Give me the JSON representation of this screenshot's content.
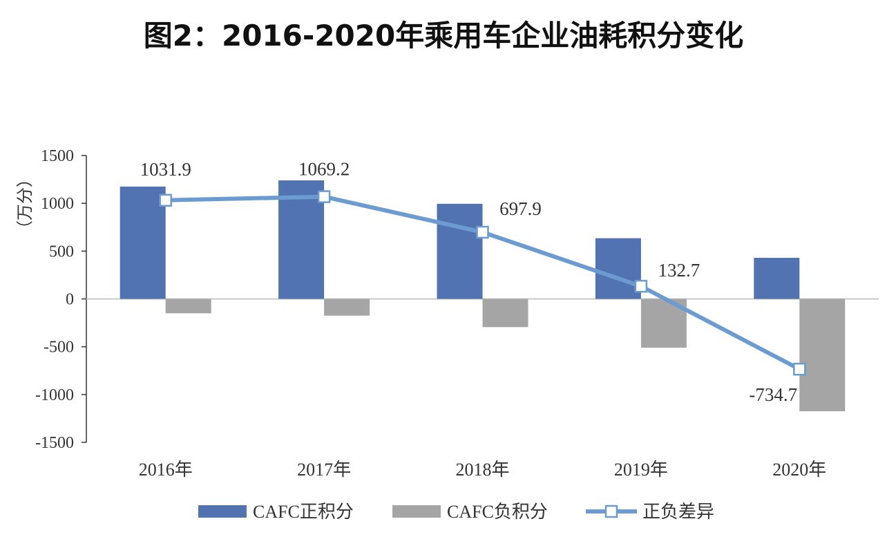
{
  "title": "图2：2016-2020年乘用车企业油耗积分变化",
  "chart_data": {
    "type": "bar",
    "categories": [
      "2016年",
      "2017年",
      "2018年",
      "2019年",
      "2020年"
    ],
    "ylabel": "（万分）",
    "ylim": [
      -1500,
      1500
    ],
    "yticks": [
      1500,
      1000,
      500,
      0,
      -500,
      -1000,
      -1500
    ],
    "grid": false,
    "legend_position": "bottom",
    "series": [
      {
        "name": "CAFC正积分",
        "type": "bar",
        "color": "#5273b1",
        "values": [
          1175,
          1240,
          995,
          635,
          430
        ]
      },
      {
        "name": "CAFC负积分",
        "type": "bar",
        "color": "#a5a5a5",
        "values": [
          -150,
          -175,
          -295,
          -510,
          -1175
        ]
      },
      {
        "name": "正负差异",
        "type": "line",
        "color": "#6b9bd0",
        "values": [
          1031.9,
          1069.2,
          697.9,
          132.7,
          -734.7
        ]
      }
    ],
    "data_labels": [
      "1031.9",
      "1069.2",
      "697.9",
      "132.7",
      "-734.7"
    ]
  }
}
